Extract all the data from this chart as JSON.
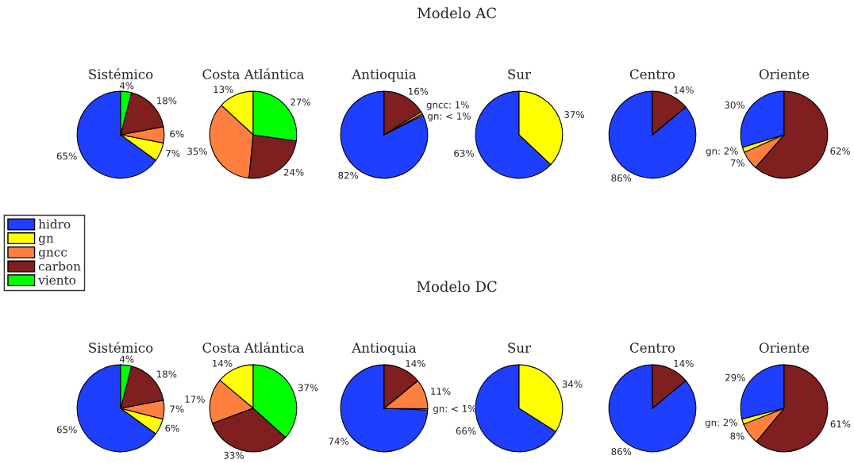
{
  "chart_data": [
    {
      "type": "pie",
      "title": "Sistémico",
      "annotations": [
        "Modelo AC"
      ],
      "legend": "bottom left",
      "categories": [
        "hidro",
        "gn",
        "gncc",
        "carbon",
        "viento"
      ],
      "values": [
        65,
        7,
        6,
        18,
        4
      ],
      "colors": [
        "#1f3fff",
        "#ffff00",
        "#ff7f3f",
        "#7f1f1f",
        "#00ff00"
      ],
      "value_labels": [
        "65%",
        "7%",
        "6%",
        "18%",
        "4%"
      ]
    },
    {
      "type": "pie",
      "title": "Costa Atlántica",
      "categories": [
        null,
        null,
        null,
        null
      ],
      "values": [
        13,
        35,
        24,
        27
      ],
      "colors": [
        "#ffff00",
        "#ff7f3f",
        "#7f1f1f",
        "#00ff00"
      ],
      "value_labels": [
        "13%",
        "35%",
        "24%",
        "27%"
      ]
    },
    {
      "type": "pie",
      "title": "Antioquia",
      "categories": [
        null,
        null,
        null,
        null
      ],
      "values": [
        82,
        0.5,
        1,
        16
      ],
      "colors": [
        "#1f3fff",
        "#ffff00",
        "#ff7f3f",
        "#7f1f1f"
      ],
      "value_labels": [
        "82%",
        "gn: < 1%",
        "gncc: 1%",
        "16%"
      ]
    },
    {
      "type": "pie",
      "title": "Sur",
      "categories": [
        null,
        null
      ],
      "values": [
        63,
        37
      ],
      "colors": [
        "#1f3fff",
        "#ffff00"
      ],
      "value_labels": [
        "63%",
        "37%"
      ]
    },
    {
      "type": "pie",
      "title": "Centro",
      "categories": [
        null,
        null
      ],
      "values": [
        86,
        14
      ],
      "colors": [
        "#1f3fff",
        "#7f1f1f"
      ],
      "value_labels": [
        "86%",
        "14%"
      ]
    },
    {
      "type": "pie",
      "title": "Oriente",
      "categories": [
        null,
        null,
        null,
        null
      ],
      "values": [
        30,
        2,
        7,
        62
      ],
      "colors": [
        "#1f3fff",
        "#ffff00",
        "#ff7f3f",
        "#7f1f1f"
      ],
      "value_labels": [
        "30%",
        "gn: 2%",
        "7%",
        "62%"
      ]
    },
    {
      "type": "pie",
      "title": "Sistémico",
      "annotations": [
        "Modelo DC"
      ],
      "categories": [
        null,
        null,
        null,
        null,
        null
      ],
      "values": [
        65,
        6,
        7,
        18,
        4
      ],
      "colors": [
        "#1f3fff",
        "#ffff00",
        "#ff7f3f",
        "#7f1f1f",
        "#00ff00"
      ],
      "value_labels": [
        "65%",
        "6%",
        "7%",
        "18%",
        "4%"
      ]
    },
    {
      "type": "pie",
      "title": "Costa Atlántica",
      "categories": [
        null,
        null,
        null,
        null
      ],
      "values": [
        14,
        17,
        33,
        37
      ],
      "colors": [
        "#ffff00",
        "#ff7f3f",
        "#7f1f1f",
        "#00ff00"
      ],
      "value_labels": [
        "14%",
        "17%",
        "33%",
        "37%"
      ]
    },
    {
      "type": "pie",
      "title": "Antioquia",
      "categories": [
        null,
        null,
        null,
        null
      ],
      "values": [
        74,
        0.5,
        11,
        14
      ],
      "colors": [
        "#1f3fff",
        "#ffff00",
        "#ff7f3f",
        "#7f1f1f"
      ],
      "value_labels": [
        "74%",
        "gn: < 1%",
        "11%",
        "14%"
      ]
    },
    {
      "type": "pie",
      "title": "Sur",
      "categories": [
        null,
        null
      ],
      "values": [
        66,
        34
      ],
      "colors": [
        "#1f3fff",
        "#ffff00"
      ],
      "value_labels": [
        "66%",
        "34%"
      ]
    },
    {
      "type": "pie",
      "title": "Centro",
      "categories": [
        null,
        null
      ],
      "values": [
        86,
        14
      ],
      "colors": [
        "#1f3fff",
        "#7f1f1f"
      ],
      "value_labels": [
        "86%",
        "14%"
      ]
    },
    {
      "type": "pie",
      "title": "Oriente",
      "categories": [
        null,
        null,
        null,
        null
      ],
      "values": [
        29,
        2,
        8,
        61
      ],
      "colors": [
        "#1f3fff",
        "#ffff00",
        "#ff7f3f",
        "#7f1f1f"
      ],
      "value_labels": [
        "29%",
        "gn: 2%",
        "8%",
        "61%"
      ]
    }
  ]
}
